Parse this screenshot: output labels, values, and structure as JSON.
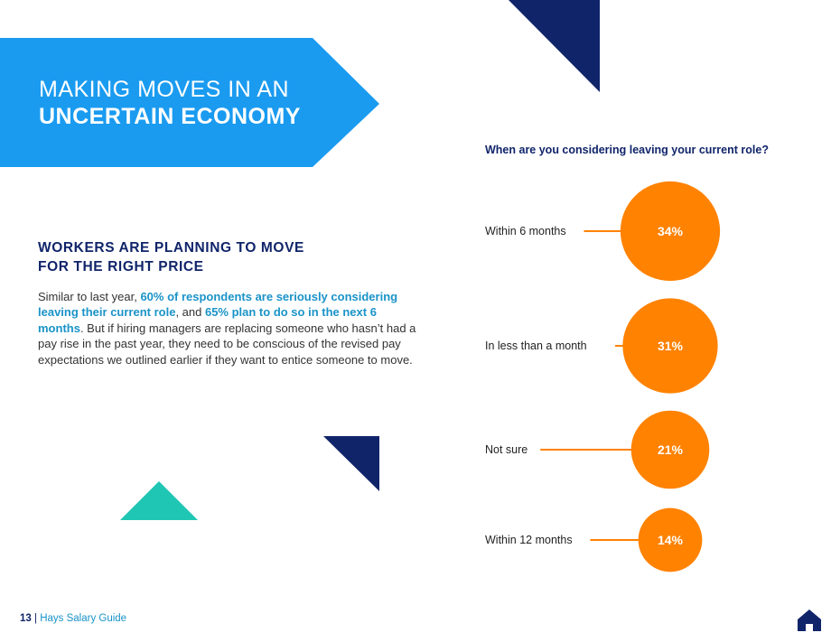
{
  "banner": {
    "line1": "MAKING MOVES IN AN",
    "line2": "UNCERTAIN ECONOMY",
    "color": "#1a9bf0"
  },
  "section": {
    "heading_line1": "WORKERS ARE PLANNING TO MOVE",
    "heading_line2": "FOR THE RIGHT PRICE",
    "body": {
      "t1": "Similar to last year, ",
      "h1": "60% of respondents are seriously considering leaving their current role",
      "t2": ", and ",
      "h2": "65% plan to do so in the next 6 months",
      "t3": ". But if hiring managers are replacing someone who hasn’t had a pay rise in the past year, they need to be conscious of the revised pay expectations we outlined earlier if they want to entice someone to move."
    }
  },
  "chart_data": {
    "type": "bubble",
    "title": "When are you considering leaving your current role?",
    "categories": [
      "Within 6 months",
      "In less than a month",
      "Not sure",
      "Within 12 months"
    ],
    "values": [
      34,
      31,
      21,
      14
    ],
    "labels": [
      "34%",
      "31%",
      "21%",
      "14%"
    ],
    "unit": "%",
    "color": "#ff8200"
  },
  "footer": {
    "page_number": "13",
    "separator": "|",
    "guide_name": "Hays Salary Guide"
  },
  "colors": {
    "navy": "#10246a",
    "teal": "#1fc6b4",
    "accent_blue": "#1a93c8"
  },
  "icons": [
    "home-icon"
  ]
}
